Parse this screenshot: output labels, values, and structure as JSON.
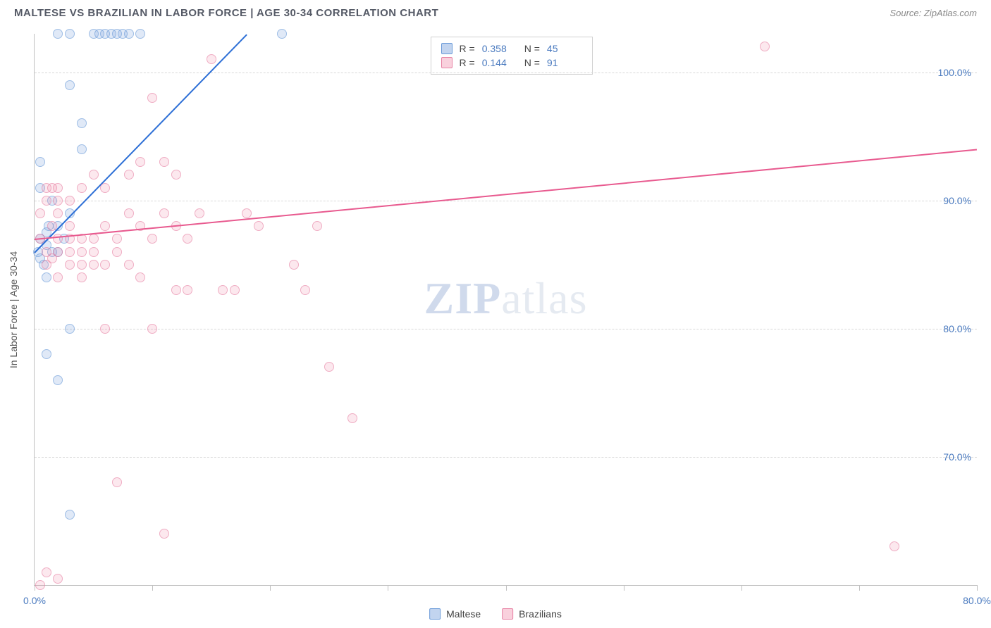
{
  "header": {
    "title": "MALTESE VS BRAZILIAN IN LABOR FORCE | AGE 30-34 CORRELATION CHART",
    "source_prefix": "Source: ",
    "source_name": "ZipAtlas.com"
  },
  "watermark": {
    "part1": "ZIP",
    "part2": "atlas"
  },
  "chart": {
    "type": "scatter",
    "y_axis_label": "In Labor Force | Age 30-34",
    "xlim": [
      0,
      80
    ],
    "ylim": [
      60,
      103
    ],
    "x_ticks": [
      0,
      10,
      20,
      30,
      40,
      50,
      60,
      70,
      80
    ],
    "x_tick_labels": {
      "0": "0.0%",
      "80": "80.0%"
    },
    "y_ticks": [
      70,
      80,
      90,
      100
    ],
    "y_tick_labels": {
      "70": "70.0%",
      "80": "80.0%",
      "90": "90.0%",
      "100": "100.0%"
    },
    "grid_color": "#d8d8d8",
    "axis_color": "#c0c0c0",
    "label_color": "#4a7abf",
    "background_color": "#ffffff",
    "point_radius": 7,
    "series": [
      {
        "name": "Maltese",
        "color_fill": "rgba(120,160,220,0.35)",
        "color_stroke": "#6a9ad8",
        "trend_color": "#2d6fd6",
        "R": "0.358",
        "N": "45",
        "trend": {
          "x1": 0,
          "y1": 86,
          "x2": 18,
          "y2": 103
        },
        "points": [
          [
            0.5,
            87
          ],
          [
            1,
            86.5
          ],
          [
            1.2,
            88
          ],
          [
            0.8,
            85
          ],
          [
            1.5,
            86
          ],
          [
            2,
            88
          ],
          [
            0.3,
            86
          ],
          [
            1,
            87.5
          ],
          [
            2,
            103
          ],
          [
            3,
            103
          ],
          [
            6,
            103
          ],
          [
            7,
            103
          ],
          [
            8,
            103
          ],
          [
            9,
            103
          ],
          [
            21,
            103
          ],
          [
            3,
            99
          ],
          [
            4,
            96
          ],
          [
            4,
            94
          ],
          [
            0.5,
            93
          ],
          [
            0.5,
            91
          ],
          [
            3,
            80
          ],
          [
            1,
            78
          ],
          [
            2,
            76
          ],
          [
            3,
            65.5
          ],
          [
            1.5,
            90
          ],
          [
            2.5,
            87
          ],
          [
            1,
            84
          ],
          [
            0.5,
            85.5
          ],
          [
            2,
            86
          ],
          [
            3,
            89
          ],
          [
            5,
            103
          ],
          [
            5.5,
            103
          ],
          [
            6.5,
            103
          ],
          [
            7.5,
            103
          ]
        ]
      },
      {
        "name": "Brazilians",
        "color_fill": "rgba(240,140,170,0.3)",
        "color_stroke": "#e782a4",
        "trend_color": "#e85a8f",
        "R": "0.144",
        "N": "91",
        "trend": {
          "x1": 0,
          "y1": 87,
          "x2": 80,
          "y2": 94
        },
        "points": [
          [
            0.5,
            87
          ],
          [
            1,
            86
          ],
          [
            1.5,
            88
          ],
          [
            2,
            87
          ],
          [
            1,
            85
          ],
          [
            2,
            86
          ],
          [
            3,
            87
          ],
          [
            1.5,
            85.5
          ],
          [
            2,
            89
          ],
          [
            3,
            88
          ],
          [
            4,
            87
          ],
          [
            3,
            86
          ],
          [
            4,
            85
          ],
          [
            5,
            86
          ],
          [
            2,
            84
          ],
          [
            6,
            88
          ],
          [
            7,
            87
          ],
          [
            8,
            89
          ],
          [
            9,
            88
          ],
          [
            10,
            87
          ],
          [
            11,
            89
          ],
          [
            12,
            88
          ],
          [
            8,
            92
          ],
          [
            9,
            93
          ],
          [
            10,
            98
          ],
          [
            11,
            93
          ],
          [
            12,
            92
          ],
          [
            13,
            87
          ],
          [
            14,
            89
          ],
          [
            15,
            101
          ],
          [
            16,
            83
          ],
          [
            17,
            83
          ],
          [
            18,
            89
          ],
          [
            19,
            88
          ],
          [
            6,
            80
          ],
          [
            7,
            68
          ],
          [
            11,
            64
          ],
          [
            12,
            83
          ],
          [
            13,
            83
          ],
          [
            22,
            85
          ],
          [
            23,
            83
          ],
          [
            24,
            88
          ],
          [
            25,
            77
          ],
          [
            27,
            73
          ],
          [
            4,
            91
          ],
          [
            5,
            92
          ],
          [
            6,
            91
          ],
          [
            3,
            90
          ],
          [
            2,
            91
          ],
          [
            1,
            91
          ],
          [
            62,
            102
          ],
          [
            73,
            63
          ],
          [
            0.5,
            60
          ],
          [
            1,
            61
          ],
          [
            2,
            60.5
          ],
          [
            8,
            85
          ],
          [
            9,
            84
          ],
          [
            10,
            80
          ],
          [
            5,
            85
          ],
          [
            4,
            84
          ],
          [
            1,
            90
          ],
          [
            2,
            90
          ],
          [
            0.5,
            89
          ],
          [
            1.5,
            91
          ],
          [
            3,
            85
          ],
          [
            4,
            86
          ],
          [
            5,
            87
          ],
          [
            6,
            85
          ],
          [
            7,
            86
          ]
        ]
      }
    ]
  },
  "legend": {
    "items": [
      {
        "label": "Maltese",
        "color_class": "sq-blue"
      },
      {
        "label": "Brazilians",
        "color_class": "sq-pink"
      }
    ]
  }
}
